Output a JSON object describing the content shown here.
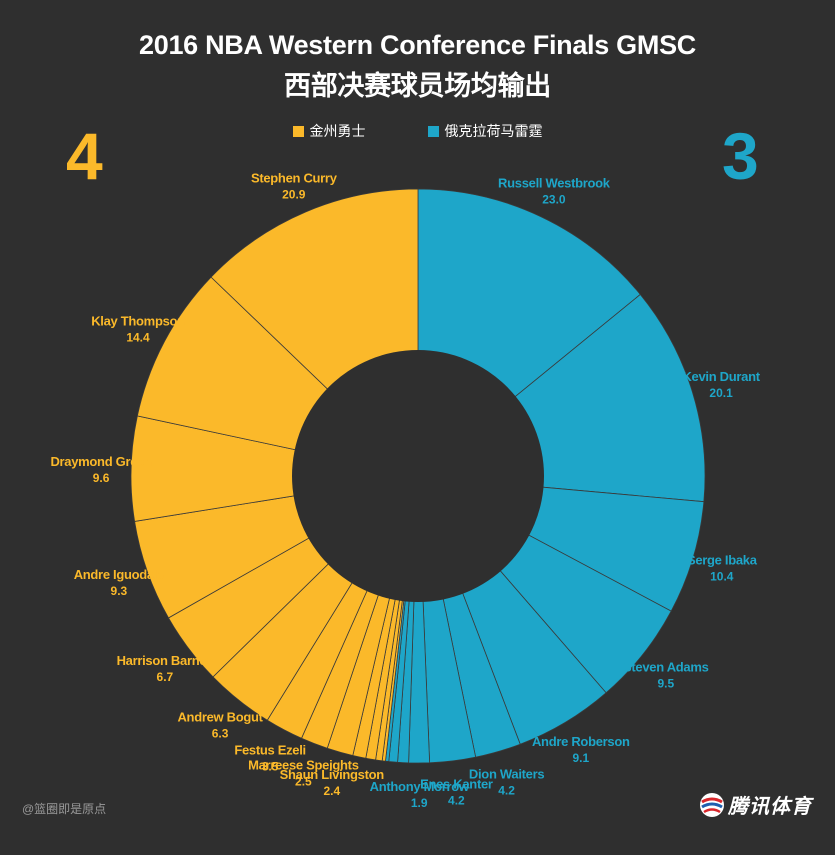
{
  "title_line1": "2016 NBA Western Conference Finals GMSC",
  "title_line2": "西部决赛球员场均输出",
  "legend": [
    {
      "label": "金州勇士",
      "color": "#fbb92a"
    },
    {
      "label": "俄克拉荷马雷霆",
      "color": "#1ea6c9"
    }
  ],
  "scores": {
    "left": "4",
    "right": "3"
  },
  "credit": "@篮圈即是原点",
  "brand": "腾讯体育",
  "chart_data": {
    "type": "pie",
    "variant": "donut",
    "title": "2016 NBA Western Conference Finals GMSC",
    "subtitle": "西部决赛球员场均输出",
    "series": [
      {
        "name": "金州勇士",
        "color": "#fbb92a"
      },
      {
        "name": "俄克拉荷马雷霆",
        "color": "#1ea6c9"
      }
    ],
    "slices": [
      {
        "label": "Russell Westbrook",
        "value": 23.0,
        "series": "俄克拉荷马雷霆",
        "display": "23.0"
      },
      {
        "label": "Kevin Durant",
        "value": 20.1,
        "series": "俄克拉荷马雷霆",
        "display": "20.1"
      },
      {
        "label": "Serge Ibaka",
        "value": 10.4,
        "series": "俄克拉荷马雷霆",
        "display": "10.4"
      },
      {
        "label": "Steven Adams",
        "value": 9.5,
        "series": "俄克拉荷马雷霆",
        "display": "9.5"
      },
      {
        "label": "Andre Roberson",
        "value": 9.1,
        "series": "俄克拉荷马雷霆",
        "display": "9.1"
      },
      {
        "label": "Dion Waiters",
        "value": 4.2,
        "series": "俄克拉荷马雷霆",
        "display": "4.2"
      },
      {
        "label": "Enes Kanter",
        "value": 4.2,
        "series": "俄克拉荷马雷霆",
        "display": "4.2"
      },
      {
        "label": "Anthony Morrow",
        "value": 1.9,
        "series": "俄克拉荷马雷霆",
        "display": "1.9"
      },
      {
        "label": "",
        "value": 1.0,
        "series": "俄克拉荷马雷霆",
        "display": ""
      },
      {
        "label": "",
        "value": 0.8,
        "series": "俄克拉荷马雷霆",
        "display": ""
      },
      {
        "label": "",
        "value": 0.3,
        "series": "俄克拉荷马雷霆",
        "display": ""
      },
      {
        "label": "",
        "value": 0.3,
        "series": "金州勇士",
        "display": ""
      },
      {
        "label": "",
        "value": 0.6,
        "series": "金州勇士",
        "display": ""
      },
      {
        "label": "",
        "value": 0.9,
        "series": "金州勇士",
        "display": ""
      },
      {
        "label": "",
        "value": 1.2,
        "series": "金州勇士",
        "display": ""
      },
      {
        "label": "Shaun Livingston",
        "value": 2.4,
        "series": "金州勇士",
        "display": "2.4"
      },
      {
        "label": "Marreese Speights",
        "value": 2.5,
        "series": "金州勇士",
        "display": "2.5"
      },
      {
        "label": "Festus Ezeli",
        "value": 3.5,
        "series": "金州勇士",
        "display": "3.5"
      },
      {
        "label": "Andrew Bogut",
        "value": 6.3,
        "series": "金州勇士",
        "display": "6.3"
      },
      {
        "label": "Harrison Barnes",
        "value": 6.7,
        "series": "金州勇士",
        "display": "6.7"
      },
      {
        "label": "Andre Iguodala",
        "value": 9.3,
        "series": "金州勇士",
        "display": "9.3"
      },
      {
        "label": "Draymond Green",
        "value": 9.6,
        "series": "金州勇士",
        "display": "9.6"
      },
      {
        "label": "Klay Thompson",
        "value": 14.4,
        "series": "金州勇士",
        "display": "14.4"
      },
      {
        "label": "Stephen Curry",
        "value": 20.9,
        "series": "金州勇士",
        "display": "20.9"
      }
    ]
  }
}
